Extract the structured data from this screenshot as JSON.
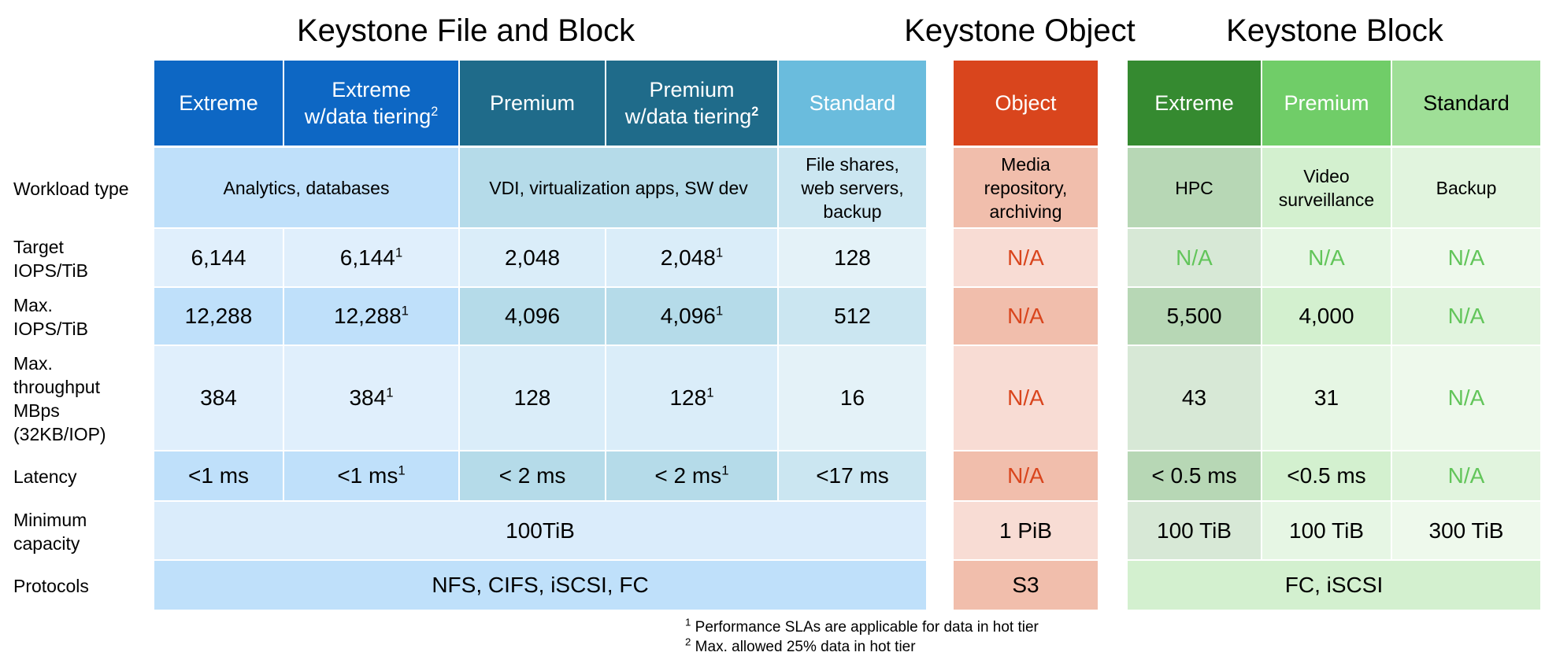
{
  "titles": {
    "file_block": "Keystone File and Block",
    "object": "Keystone Object",
    "block": "Keystone Block"
  },
  "headers": {
    "fb_extreme": "Extreme",
    "fb_extreme_tier_1": "Extreme",
    "fb_extreme_tier_2": "w/data tiering",
    "fb_premium": "Premium",
    "fb_premium_tier_1": "Premium",
    "fb_premium_tier_2": "w/data tiering",
    "fb_standard": "Standard",
    "object": "Object",
    "b_extreme": "Extreme",
    "b_premium": "Premium",
    "b_standard": "Standard",
    "sup2": "2"
  },
  "row_labels": {
    "workload_1": "Workload type",
    "target_1": "Target",
    "target_2": "IOPS/TiB",
    "max_1": "Max.",
    "max_2": "IOPS/TiB",
    "thr_1": "Max.",
    "thr_2": "throughput",
    "thr_3": "MBps",
    "thr_4": "(32KB/IOP)",
    "latency": "Latency",
    "mincap_1": "Minimum",
    "mincap_2": "capacity",
    "protocols": "Protocols"
  },
  "workload": {
    "analytics": "Analytics, databases",
    "vdi": "VDI, virtualization apps, SW dev",
    "std_1": "File shares,",
    "std_2": "web servers,",
    "std_3": "backup",
    "obj_1": "Media",
    "obj_2": "repository,",
    "obj_3": "archiving",
    "b_ext": "HPC",
    "b_prem_1": "Video",
    "b_prem_2": "surveillance",
    "b_std": "Backup"
  },
  "target_iops": {
    "ext": "6,144",
    "ext_t": "6,144",
    "prem": "2,048",
    "prem_t": "2,048",
    "std": "128",
    "obj": "N/A",
    "b_ext": "N/A",
    "b_prem": "N/A",
    "b_std": "N/A"
  },
  "max_iops": {
    "ext": "12,288",
    "ext_t": "12,288",
    "prem": "4,096",
    "prem_t": "4,096",
    "std": "512",
    "obj": "N/A",
    "b_ext": "5,500",
    "b_prem": "4,000",
    "b_std": "N/A"
  },
  "throughput": {
    "ext": "384",
    "ext_t": "384",
    "prem": "128",
    "prem_t": "128",
    "std": "16",
    "obj": "N/A",
    "b_ext": "43",
    "b_prem": "31",
    "b_std": "N/A"
  },
  "latency": {
    "ext": "<1 ms",
    "ext_t": "<1 ms",
    "prem": "< 2 ms",
    "prem_t": "< 2 ms",
    "std": "<17 ms",
    "obj": "N/A",
    "b_ext": "< 0.5 ms",
    "b_prem": "<0.5 ms",
    "b_std": "N/A"
  },
  "min_capacity": {
    "fb": "100TiB",
    "obj": "1 PiB",
    "b_ext": "100 TiB",
    "b_prem": "100 TiB",
    "b_std": "300 TiB"
  },
  "protocols": {
    "fb": "NFS, CIFS, iSCSI, FC",
    "obj": "S3",
    "b": "FC, iSCSI"
  },
  "footnotes": {
    "sup1": "1",
    "sup2": "2",
    "note1": " Performance SLAs are applicable for data in hot tier",
    "note2": "  Max. allowed 25% data in hot tier"
  },
  "colors": {
    "fb_header_dark_blue": "#0d67c4",
    "fb_header_teal": "#1f6b8a",
    "fb_header_standard": "#6abcdd",
    "object_header": "#d9451d",
    "block_header_dark": "#358a30",
    "block_header_mid": "#70cd68",
    "block_header_light": "#9fdf97"
  }
}
